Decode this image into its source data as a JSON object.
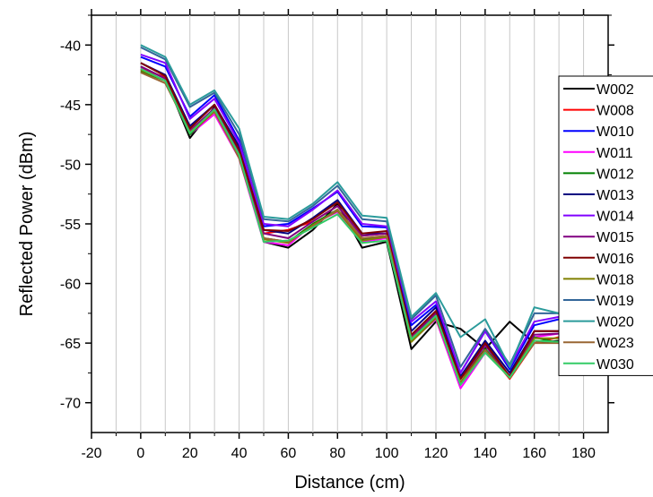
{
  "chart_data": {
    "type": "line",
    "title": "",
    "xlabel": "Distance (cm)",
    "ylabel": "Reflected Power (dBm)",
    "xlim": [
      -20,
      190
    ],
    "ylim": [
      -72.5,
      -37.5
    ],
    "xticks": [
      -20,
      0,
      20,
      40,
      60,
      80,
      100,
      120,
      140,
      160,
      180
    ],
    "xtick_labels": [
      "-20",
      "0",
      "20",
      "40",
      "60",
      "80",
      "100",
      "120",
      "140",
      "160",
      "180"
    ],
    "yticks": [
      -40,
      -45,
      -50,
      -55,
      -60,
      -65,
      -70
    ],
    "ytick_labels": [
      "-40",
      "-45",
      "-50",
      "-55",
      "-60",
      "-65",
      "-70"
    ],
    "vertical_grid": true,
    "legend_position": "right",
    "x": [
      0,
      10,
      20,
      30,
      40,
      50,
      60,
      70,
      80,
      90,
      100,
      110,
      120,
      130,
      140,
      150,
      160,
      170,
      180
    ],
    "series": [
      {
        "name": "W002",
        "color": "#000000",
        "values": [
          -41.8,
          -42.8,
          -47.8,
          -45.2,
          -49.2,
          -56.5,
          -57.0,
          -55.5,
          -53.3,
          -57.0,
          -56.5,
          -65.5,
          -63.2,
          -63.8,
          -65.5,
          -63.2,
          -65.0,
          -64.8,
          -64.5
        ]
      },
      {
        "name": "W008",
        "color": "#ff0000",
        "values": [
          -42.0,
          -42.7,
          -47.3,
          -45.5,
          -49.0,
          -55.8,
          -55.5,
          -54.8,
          -53.5,
          -56.0,
          -55.8,
          -64.5,
          -62.5,
          -68.0,
          -65.5,
          -68.0,
          -65.0,
          -64.5,
          -64.0
        ]
      },
      {
        "name": "W010",
        "color": "#0000ff",
        "values": [
          -41.0,
          -41.8,
          -46.0,
          -44.2,
          -48.0,
          -55.2,
          -55.0,
          -53.7,
          -52.3,
          -55.2,
          -55.3,
          -63.5,
          -61.8,
          -67.5,
          -64.0,
          -67.2,
          -63.5,
          -63.0,
          -62.5
        ]
      },
      {
        "name": "W011",
        "color": "#ff00ff",
        "values": [
          -42.0,
          -43.0,
          -47.5,
          -45.8,
          -49.5,
          -56.5,
          -56.8,
          -55.0,
          -54.0,
          -56.5,
          -56.2,
          -64.8,
          -63.0,
          -68.8,
          -65.8,
          -67.8,
          -64.5,
          -64.2,
          -64.0
        ]
      },
      {
        "name": "W012",
        "color": "#008000",
        "values": [
          -42.2,
          -43.0,
          -47.5,
          -45.5,
          -49.3,
          -56.2,
          -56.5,
          -55.0,
          -53.8,
          -56.3,
          -56.0,
          -64.8,
          -62.8,
          -68.3,
          -65.5,
          -67.8,
          -64.5,
          -65.0,
          -64.5
        ]
      },
      {
        "name": "W013",
        "color": "#000080",
        "values": [
          -41.5,
          -42.5,
          -46.8,
          -45.0,
          -48.5,
          -55.5,
          -55.8,
          -54.5,
          -53.0,
          -55.8,
          -55.8,
          -64.0,
          -62.0,
          -67.8,
          -64.8,
          -67.5,
          -64.0,
          -64.0,
          -63.5
        ]
      },
      {
        "name": "W014",
        "color": "#8000ff",
        "values": [
          -40.8,
          -41.5,
          -46.2,
          -44.5,
          -48.2,
          -55.0,
          -55.2,
          -53.8,
          -52.2,
          -55.0,
          -55.2,
          -63.2,
          -61.5,
          -67.5,
          -64.0,
          -67.0,
          -63.2,
          -62.8,
          -62.5
        ]
      },
      {
        "name": "W015",
        "color": "#800080",
        "values": [
          -41.8,
          -42.8,
          -47.2,
          -45.3,
          -49.0,
          -55.8,
          -56.2,
          -54.8,
          -53.5,
          -56.0,
          -55.8,
          -64.5,
          -62.5,
          -68.0,
          -65.2,
          -67.8,
          -64.3,
          -64.2,
          -64.0
        ]
      },
      {
        "name": "W016",
        "color": "#800000",
        "values": [
          -41.5,
          -42.6,
          -47.0,
          -45.0,
          -48.8,
          -55.5,
          -55.6,
          -54.6,
          -53.2,
          -55.8,
          -55.6,
          -64.3,
          -62.3,
          -68.0,
          -65.0,
          -67.8,
          -64.0,
          -64.0,
          -63.8
        ]
      },
      {
        "name": "W018",
        "color": "#808000",
        "values": [
          -42.1,
          -43.0,
          -47.4,
          -45.6,
          -49.4,
          -56.3,
          -56.6,
          -55.1,
          -53.9,
          -56.4,
          -56.1,
          -64.9,
          -62.9,
          -68.3,
          -65.6,
          -67.9,
          -64.6,
          -64.6,
          -64.3
        ]
      },
      {
        "name": "W019",
        "color": "#336699",
        "values": [
          -40.2,
          -41.2,
          -45.2,
          -44.0,
          -47.5,
          -54.6,
          -54.8,
          -53.5,
          -51.8,
          -54.6,
          -54.8,
          -63.0,
          -61.0,
          -67.0,
          -63.8,
          -66.8,
          -62.5,
          -62.5,
          -62.2
        ]
      },
      {
        "name": "W020",
        "color": "#2b9b9b",
        "values": [
          -40.0,
          -41.0,
          -45.0,
          -43.8,
          -47.0,
          -54.4,
          -54.6,
          -53.3,
          -51.5,
          -54.3,
          -54.5,
          -62.8,
          -60.8,
          -64.5,
          -63.0,
          -67.0,
          -62.0,
          -62.5,
          -62.0
        ]
      },
      {
        "name": "W023",
        "color": "#996633",
        "values": [
          -42.3,
          -43.2,
          -47.3,
          -45.5,
          -49.5,
          -56.2,
          -56.5,
          -55.2,
          -53.8,
          -56.2,
          -56.0,
          -64.6,
          -62.8,
          -68.5,
          -65.6,
          -67.9,
          -65.0,
          -65.0,
          -64.8
        ]
      },
      {
        "name": "W030",
        "color": "#33cc66",
        "values": [
          -42.0,
          -43.0,
          -47.4,
          -45.4,
          -49.2,
          -56.5,
          -56.4,
          -55.3,
          -54.2,
          -56.6,
          -56.4,
          -64.7,
          -62.7,
          -68.5,
          -65.8,
          -67.9,
          -64.8,
          -64.9,
          -64.8
        ]
      }
    ]
  }
}
